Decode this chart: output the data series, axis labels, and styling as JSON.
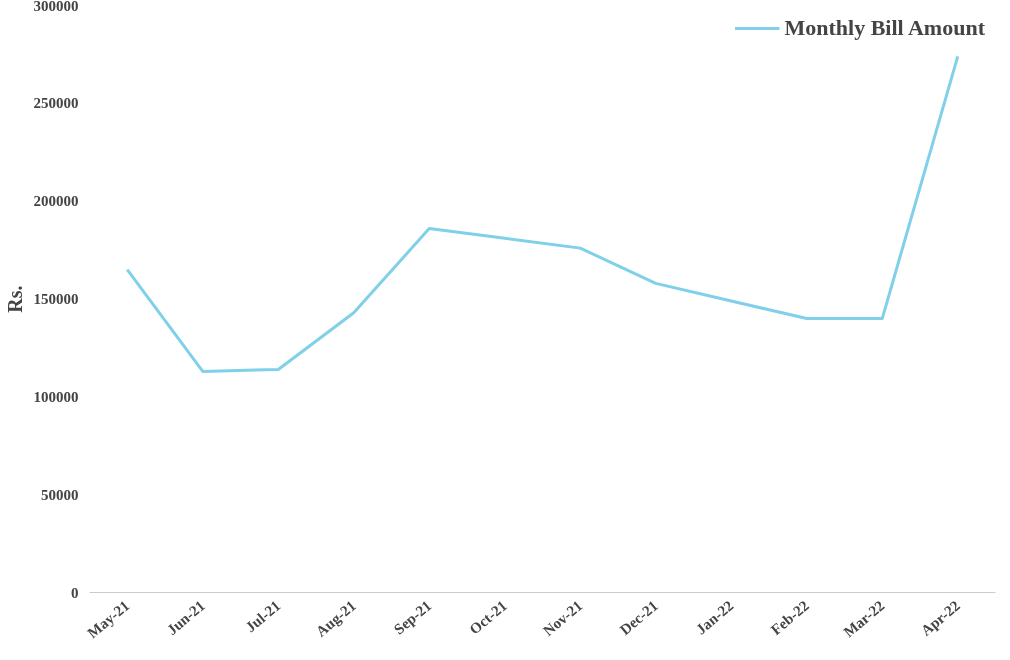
{
  "chart_data": {
    "type": "line",
    "ylabel": "Rs.",
    "categories": [
      "May-21",
      "Jun-21",
      "Jul-21",
      "Aug-21",
      "Sep-21",
      "Oct-21",
      "Nov-21",
      "Dec-21",
      "Jan-22",
      "Feb-22",
      "Mar-22",
      "Apr-22"
    ],
    "series": [
      {
        "name": "Monthly Bill Amount",
        "color": "#7fd0e8",
        "values": [
          165000,
          113000,
          114000,
          143000,
          186000,
          181000,
          176000,
          158000,
          149000,
          140000,
          140000,
          274000
        ]
      }
    ],
    "ylim": [
      0,
      300000
    ],
    "yticks": [
      0,
      50000,
      100000,
      150000,
      200000,
      250000,
      300000
    ],
    "grid": false,
    "legend": "top right",
    "marker": "none",
    "line_style": "solid"
  }
}
